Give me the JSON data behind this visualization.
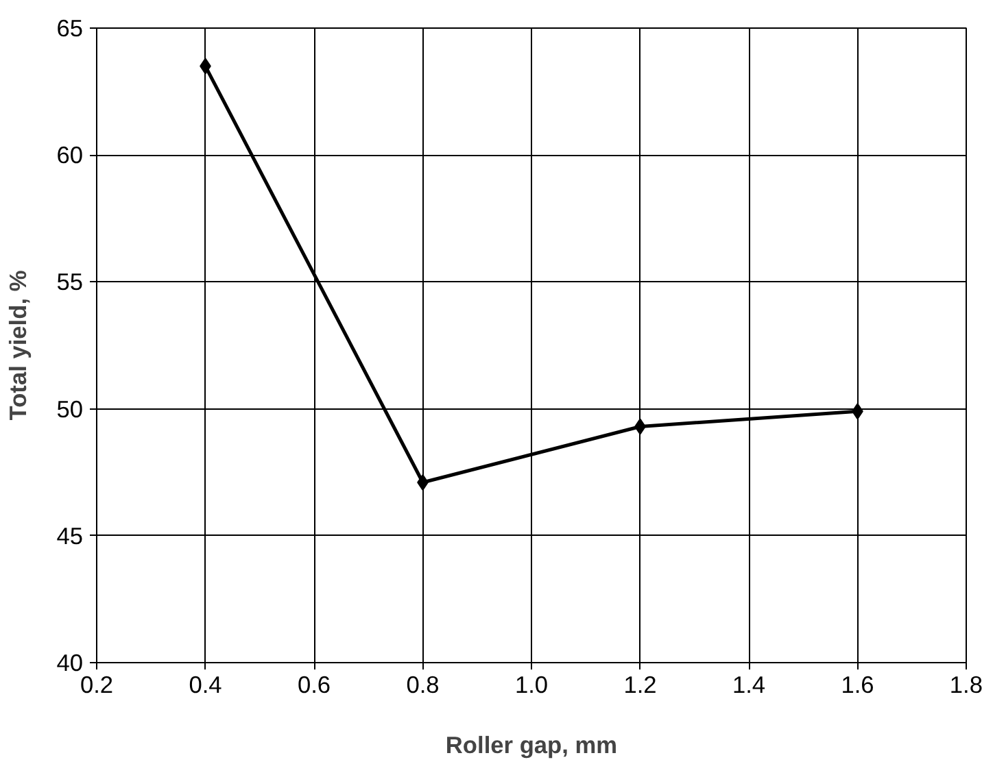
{
  "chart_data": {
    "type": "line",
    "xlabel": "Roller gap, mm",
    "ylabel": "Total yield, %",
    "x": [
      0.4,
      0.8,
      1.2,
      1.6
    ],
    "series": [
      {
        "color": "#000000",
        "values": [
          63.5,
          47.1,
          49.3,
          49.9
        ]
      }
    ],
    "xlim": [
      0.2,
      1.8
    ],
    "ylim": [
      40,
      65
    ],
    "xticks": [
      0.2,
      0.4,
      0.6,
      0.8,
      {
        "value": 1,
        "label": "1.0"
      },
      1.2,
      1.4,
      1.6,
      1.8
    ],
    "yticks": [
      40,
      45,
      50,
      55,
      60,
      65
    ],
    "grid": true,
    "marker": "diamond",
    "line_style": "solid"
  }
}
